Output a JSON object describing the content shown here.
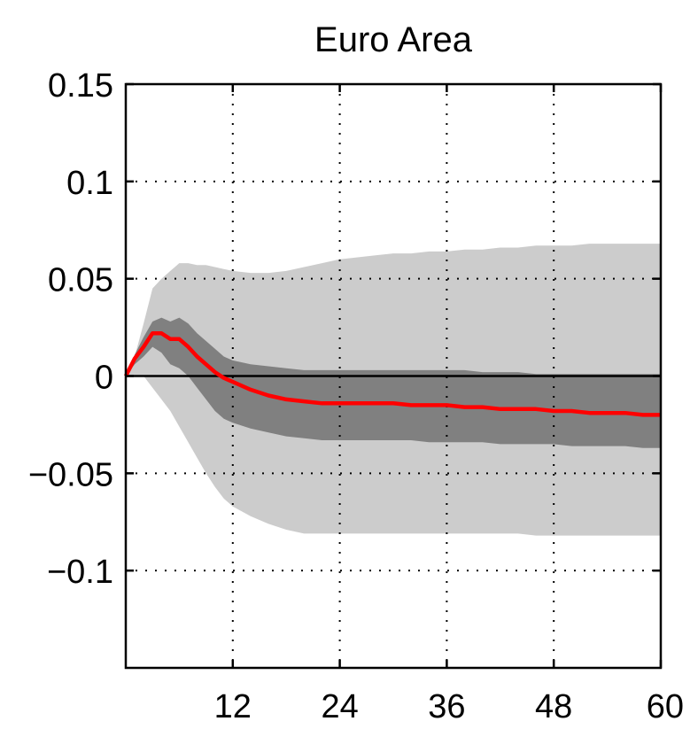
{
  "chart_data": {
    "type": "line",
    "title": "Euro Area",
    "xlabel": "",
    "ylabel": "",
    "xlim": [
      0,
      60
    ],
    "ylim": [
      -0.15,
      0.15
    ],
    "x_ticks": [
      12,
      24,
      36,
      48,
      60
    ],
    "x_tick_labels": [
      "12",
      "24",
      "36",
      "48",
      "60"
    ],
    "y_ticks": [
      0.15,
      0.1,
      0.05,
      0,
      -0.05,
      -0.1
    ],
    "y_tick_labels": [
      "0.15",
      "0.1",
      "0.05",
      "0",
      "−0.05",
      "−0.1"
    ],
    "grid": "dotted",
    "zero_line": true,
    "colors": {
      "median": "#ff0000",
      "inner_band": "#808080",
      "outer_band": "#cccccc",
      "zero_line": "#000000"
    },
    "x": [
      0,
      1,
      2,
      3,
      4,
      5,
      6,
      7,
      8,
      9,
      10,
      11,
      12,
      14,
      16,
      18,
      20,
      22,
      24,
      26,
      28,
      30,
      32,
      34,
      36,
      38,
      40,
      42,
      44,
      46,
      48,
      50,
      52,
      54,
      56,
      58,
      60
    ],
    "series": [
      {
        "role": "outer_band",
        "upper": [
          0.0,
          0.01,
          0.027,
          0.045,
          0.05,
          0.054,
          0.058,
          0.058,
          0.057,
          0.057,
          0.056,
          0.055,
          0.054,
          0.053,
          0.053,
          0.054,
          0.056,
          0.058,
          0.06,
          0.061,
          0.062,
          0.063,
          0.063,
          0.064,
          0.064,
          0.065,
          0.065,
          0.066,
          0.066,
          0.067,
          0.067,
          0.067,
          0.068,
          0.068,
          0.068,
          0.068,
          0.068
        ],
        "lower": [
          0.0,
          0.0,
          0.0,
          -0.006,
          -0.012,
          -0.018,
          -0.026,
          -0.034,
          -0.042,
          -0.05,
          -0.057,
          -0.063,
          -0.067,
          -0.072,
          -0.076,
          -0.079,
          -0.081,
          -0.081,
          -0.081,
          -0.081,
          -0.081,
          -0.081,
          -0.081,
          -0.081,
          -0.081,
          -0.081,
          -0.081,
          -0.081,
          -0.081,
          -0.082,
          -0.082,
          -0.082,
          -0.082,
          -0.082,
          -0.082,
          -0.082,
          -0.082
        ]
      },
      {
        "role": "inner_band",
        "upper": [
          0.0,
          0.011,
          0.02,
          0.028,
          0.03,
          0.028,
          0.03,
          0.027,
          0.022,
          0.018,
          0.014,
          0.01,
          0.008,
          0.006,
          0.005,
          0.004,
          0.003,
          0.003,
          0.003,
          0.003,
          0.003,
          0.003,
          0.003,
          0.003,
          0.003,
          0.003,
          0.002,
          0.002,
          0.002,
          0.001,
          0.001,
          0.001,
          0.001,
          0.001,
          0.001,
          0.001,
          0.001
        ],
        "lower": [
          0.0,
          0.006,
          0.01,
          0.015,
          0.012,
          0.006,
          0.004,
          0.0,
          -0.006,
          -0.012,
          -0.018,
          -0.022,
          -0.024,
          -0.027,
          -0.029,
          -0.031,
          -0.032,
          -0.033,
          -0.033,
          -0.033,
          -0.033,
          -0.033,
          -0.033,
          -0.034,
          -0.034,
          -0.034,
          -0.034,
          -0.035,
          -0.035,
          -0.035,
          -0.035,
          -0.036,
          -0.036,
          -0.036,
          -0.036,
          -0.037,
          -0.037
        ]
      },
      {
        "role": "median",
        "values": [
          0.0,
          0.009,
          0.015,
          0.022,
          0.022,
          0.019,
          0.019,
          0.015,
          0.01,
          0.006,
          0.002,
          -0.001,
          -0.003,
          -0.007,
          -0.01,
          -0.012,
          -0.013,
          -0.014,
          -0.014,
          -0.014,
          -0.014,
          -0.014,
          -0.015,
          -0.015,
          -0.015,
          -0.016,
          -0.016,
          -0.017,
          -0.017,
          -0.017,
          -0.018,
          -0.018,
          -0.019,
          -0.019,
          -0.019,
          -0.02,
          -0.02
        ]
      }
    ]
  }
}
